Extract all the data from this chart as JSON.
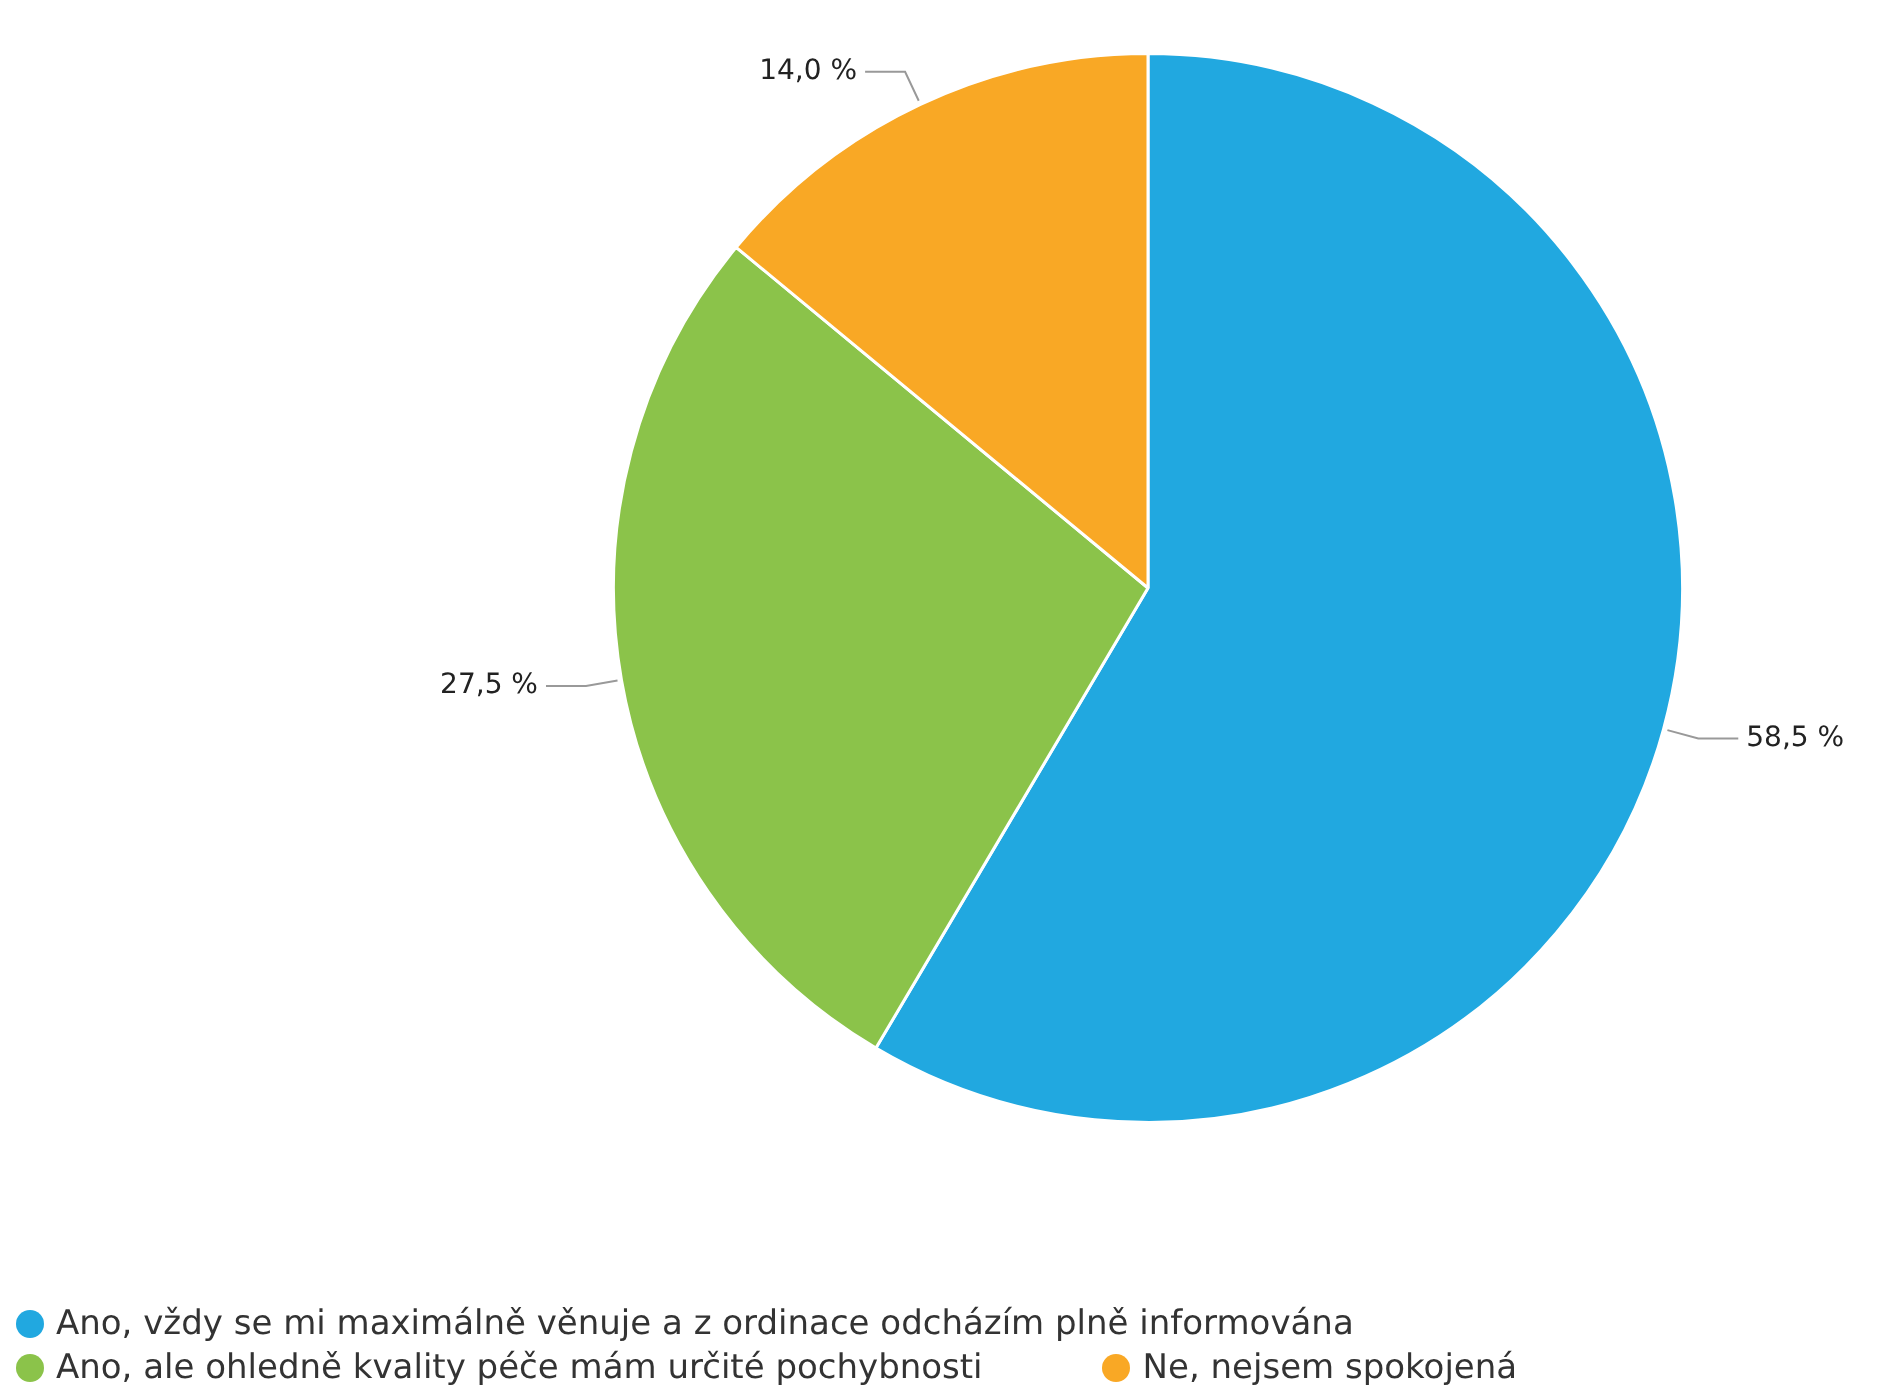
{
  "chart_data": {
    "type": "pie",
    "categories": [
      "Ano, vždy se mi maximálně věnuje a z ordinace odcházím plně informována",
      "Ano, ale ohledně kvality péče mám určité pochybnosti",
      "Ne, nejsem spokojená"
    ],
    "values": [
      58.5,
      27.5,
      14.0
    ],
    "colors": [
      "#21a8e0",
      "#8bc34a",
      "#f9a825"
    ],
    "value_labels": [
      "58,5 %",
      "27,5 %",
      "14,0 %"
    ],
    "legend": "bottom left"
  }
}
